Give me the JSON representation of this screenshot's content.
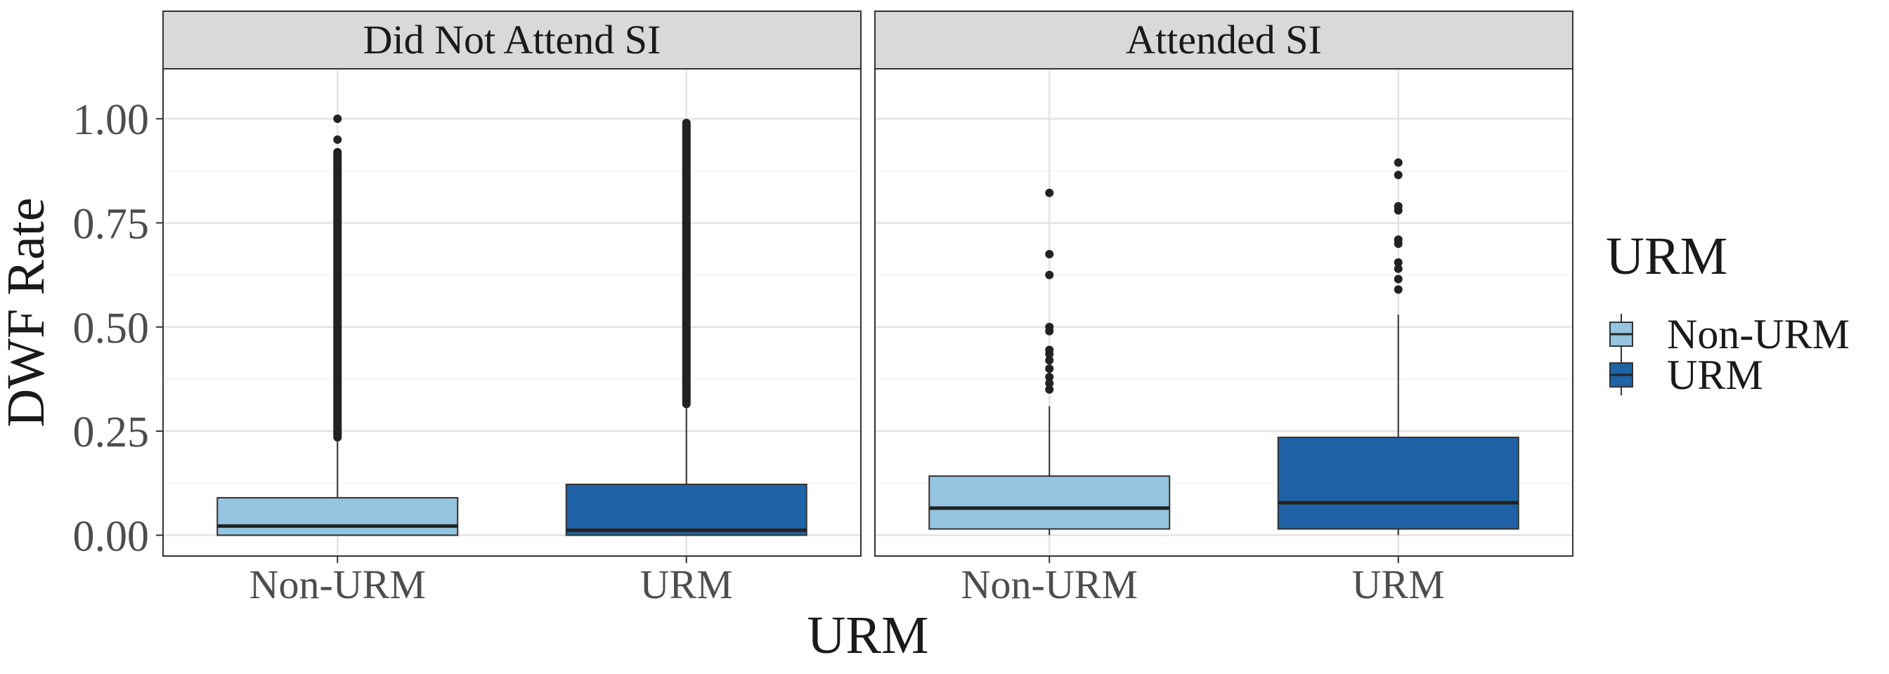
{
  "chart_data": {
    "type": "boxplot",
    "xlabel": "URM",
    "ylabel": "DWF Rate",
    "ylim": [
      -0.05,
      1.12
    ],
    "y_ticks": [
      0.0,
      0.25,
      0.5,
      0.75,
      1.0
    ],
    "y_tick_labels": [
      "0.00",
      "0.25",
      "0.50",
      "0.75",
      "1.00"
    ],
    "categories": [
      "Non-URM",
      "URM"
    ],
    "legend": {
      "title": "URM",
      "position": "right",
      "entries": [
        {
          "label": "Non-URM",
          "color": "#94c4df"
        },
        {
          "label": "URM",
          "color": "#1f63a6"
        }
      ]
    },
    "colors": {
      "Non-URM": "#94c4df",
      "URM": "#1f63a6"
    },
    "panels": [
      {
        "title": "Did Not Attend SI",
        "boxes": [
          {
            "category": "Non-URM",
            "q1": 0.0,
            "median": 0.022,
            "q3": 0.09,
            "whisker_low": 0.0,
            "whisker_high": 0.225,
            "outliers_dense_range": [
              0.225,
              0.93
            ],
            "outliers": [
              0.95,
              1.0
            ]
          },
          {
            "category": "URM",
            "q1": 0.0,
            "median": 0.012,
            "q3": 0.122,
            "whisker_low": 0.0,
            "whisker_high": 0.305,
            "outliers_dense_range": [
              0.305,
              1.0
            ],
            "outliers": []
          }
        ]
      },
      {
        "title": "Attended SI",
        "boxes": [
          {
            "category": "Non-URM",
            "q1": 0.015,
            "median": 0.065,
            "q3": 0.142,
            "whisker_low": 0.0,
            "whisker_high": 0.31,
            "outliers_dense_range": null,
            "outliers": [
              0.35,
              0.365,
              0.38,
              0.4,
              0.42,
              0.435,
              0.445,
              0.49,
              0.5,
              0.625,
              0.675,
              0.822
            ]
          },
          {
            "category": "URM",
            "q1": 0.015,
            "median": 0.078,
            "q3": 0.235,
            "whisker_low": 0.0,
            "whisker_high": 0.53,
            "outliers_dense_range": null,
            "outliers": [
              0.59,
              0.615,
              0.64,
              0.655,
              0.7,
              0.71,
              0.78,
              0.79,
              0.865,
              0.895
            ]
          }
        ]
      }
    ]
  }
}
